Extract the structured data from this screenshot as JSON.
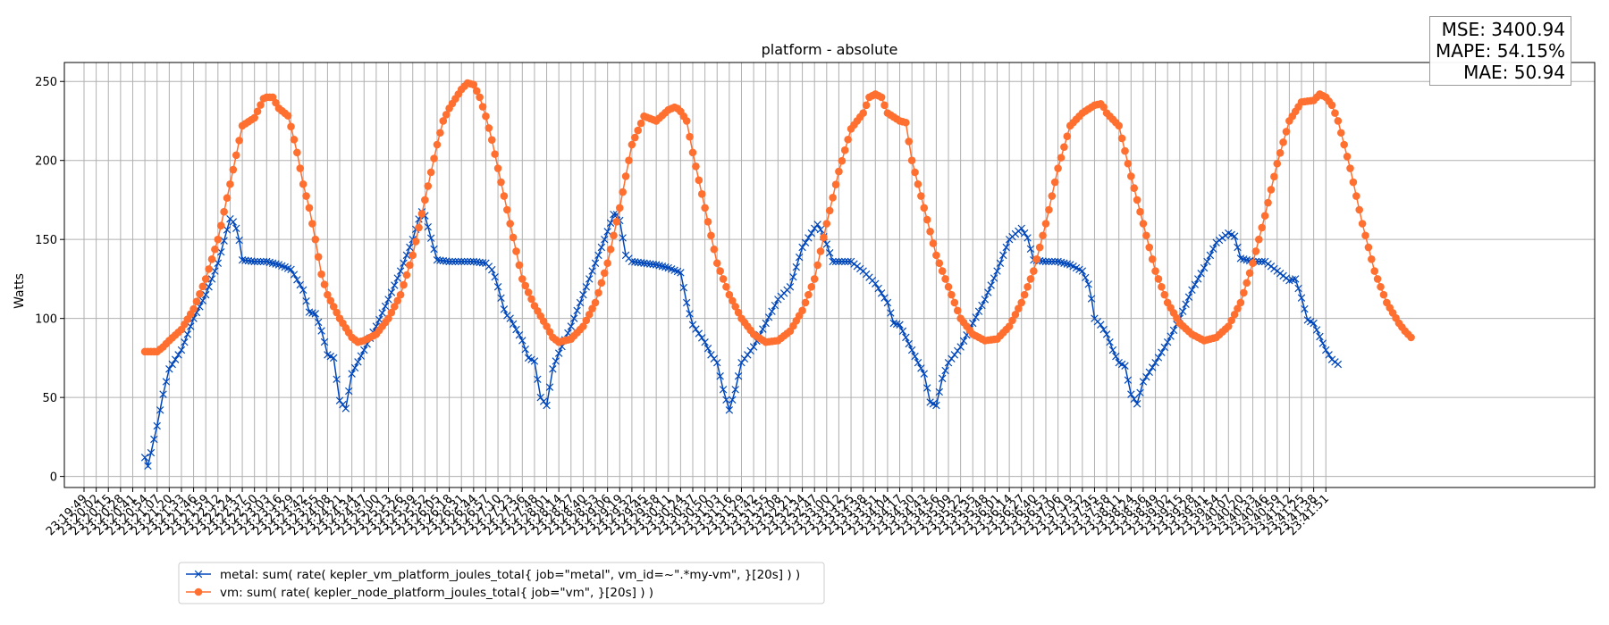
{
  "chart_data": {
    "type": "line",
    "title": "platform - absolute",
    "xlabel": "",
    "ylabel": "Watts",
    "ylim": [
      -7,
      262
    ],
    "yticks": [
      0,
      50,
      100,
      150,
      200,
      250
    ],
    "grid": true,
    "legend_position": "bottom-left",
    "x_ticks": [
      "23:19:49",
      "23:20:02",
      "23:20:15",
      "23:20:28",
      "23:20:41",
      "23:20:54",
      "23:21:07",
      "23:21:20",
      "23:21:33",
      "23:21:46",
      "23:21:59",
      "23:22:12",
      "23:22:24",
      "23:22:37",
      "23:22:50",
      "23:23:03",
      "23:23:16",
      "23:23:29",
      "23:23:42",
      "23:23:55",
      "23:24:08",
      "23:24:21",
      "23:24:34",
      "23:24:47",
      "23:25:00",
      "23:25:13",
      "23:25:26",
      "23:25:39",
      "23:25:52",
      "23:26:05",
      "23:26:18",
      "23:26:31",
      "23:26:44",
      "23:26:57",
      "23:27:10",
      "23:27:23",
      "23:27:36",
      "23:27:48",
      "23:28:01",
      "23:28:14",
      "23:28:27",
      "23:28:40",
      "23:28:53",
      "23:29:06",
      "23:29:19",
      "23:29:32",
      "23:29:45",
      "23:29:58",
      "23:30:11",
      "23:30:24",
      "23:30:37",
      "23:30:50",
      "23:31:03",
      "23:31:16",
      "23:31:29",
      "23:31:42",
      "23:31:55",
      "23:32:08",
      "23:32:21",
      "23:32:34",
      "23:32:47",
      "23:33:00",
      "23:33:12",
      "23:33:25",
      "23:33:38",
      "23:33:51",
      "23:34:04",
      "23:34:17",
      "23:34:30",
      "23:34:43",
      "23:34:56",
      "23:35:09",
      "23:35:22",
      "23:35:35",
      "23:35:48",
      "23:36:01",
      "23:36:14",
      "23:36:27",
      "23:36:40",
      "23:36:53",
      "23:37:06",
      "23:37:19",
      "23:37:32",
      "23:37:45",
      "23:37:58",
      "23:38:11",
      "23:38:24",
      "23:38:36",
      "23:38:49",
      "23:39:02",
      "23:39:15",
      "23:39:28",
      "23:39:41",
      "23:39:54",
      "23:40:07",
      "23:40:20",
      "23:40:33",
      "23:40:46",
      "23:40:59",
      "23:41:12",
      "23:41:25",
      "23:41:38",
      "23:41:51"
    ],
    "series": [
      {
        "name": "metal: sum( rate( kepler_vm_platform_joules_total{ job=\"metal\", vm_id=~\".*my-vm\", }[20s] ) )",
        "color": "#0047bb",
        "marker": "x",
        "anchors": [
          [
            5,
            12
          ],
          [
            5.2,
            5
          ],
          [
            5.5,
            15
          ],
          [
            6,
            32
          ],
          [
            6.5,
            52
          ],
          [
            7,
            68
          ],
          [
            8,
            80
          ],
          [
            9,
            100
          ],
          [
            10,
            115
          ],
          [
            11,
            135
          ],
          [
            11.6,
            152
          ],
          [
            12,
            163
          ],
          [
            12.4,
            160
          ],
          [
            12.8,
            148
          ],
          [
            13,
            137
          ],
          [
            14,
            136
          ],
          [
            15,
            136
          ],
          [
            16,
            134
          ],
          [
            17,
            131
          ],
          [
            18,
            118
          ],
          [
            18.5,
            104
          ],
          [
            19,
            103
          ],
          [
            19.6,
            90
          ],
          [
            20,
            77
          ],
          [
            20.5,
            75
          ],
          [
            21,
            48
          ],
          [
            21.5,
            43
          ],
          [
            22,
            65
          ],
          [
            23,
            80
          ],
          [
            24,
            95
          ],
          [
            25,
            112
          ],
          [
            26,
            130
          ],
          [
            27,
            150
          ],
          [
            27.7,
            168
          ],
          [
            28,
            165
          ],
          [
            28.6,
            148
          ],
          [
            29,
            137
          ],
          [
            30,
            136
          ],
          [
            31,
            136
          ],
          [
            32,
            136
          ],
          [
            33,
            135
          ],
          [
            33.6,
            130
          ],
          [
            34,
            120
          ],
          [
            34.6,
            103
          ],
          [
            35,
            100
          ],
          [
            36,
            86
          ],
          [
            36.5,
            75
          ],
          [
            37,
            73
          ],
          [
            37.5,
            50
          ],
          [
            38,
            45
          ],
          [
            38.5,
            68
          ],
          [
            39,
            78
          ],
          [
            40,
            95
          ],
          [
            41,
            115
          ],
          [
            42,
            135
          ],
          [
            43,
            155
          ],
          [
            43.6,
            168
          ],
          [
            44,
            162
          ],
          [
            44.5,
            140
          ],
          [
            45,
            136
          ],
          [
            46,
            135
          ],
          [
            47,
            134
          ],
          [
            48,
            132
          ],
          [
            49,
            129
          ],
          [
            49.5,
            110
          ],
          [
            50,
            96
          ],
          [
            51,
            85
          ],
          [
            51.5,
            77
          ],
          [
            52,
            72
          ],
          [
            52.5,
            55
          ],
          [
            53,
            42
          ],
          [
            53.5,
            55
          ],
          [
            54,
            72
          ],
          [
            55,
            82
          ],
          [
            56,
            97
          ],
          [
            57,
            112
          ],
          [
            58,
            120
          ],
          [
            59,
            145
          ],
          [
            60,
            157
          ],
          [
            60.3,
            160
          ],
          [
            61,
            147
          ],
          [
            61.5,
            136
          ],
          [
            62,
            136
          ],
          [
            63,
            136
          ],
          [
            64,
            130
          ],
          [
            65,
            122
          ],
          [
            66,
            110
          ],
          [
            66.5,
            97
          ],
          [
            67,
            96
          ],
          [
            68,
            80
          ],
          [
            68.5,
            72
          ],
          [
            69,
            65
          ],
          [
            69.5,
            47
          ],
          [
            70,
            45
          ],
          [
            70.5,
            62
          ],
          [
            71,
            72
          ],
          [
            72,
            82
          ],
          [
            73,
            97
          ],
          [
            74,
            112
          ],
          [
            75,
            130
          ],
          [
            76,
            150
          ],
          [
            77,
            157
          ],
          [
            77.5,
            151
          ],
          [
            78,
            137
          ],
          [
            79,
            136
          ],
          [
            80,
            136
          ],
          [
            81,
            134
          ],
          [
            82,
            130
          ],
          [
            82.6,
            120
          ],
          [
            83,
            100
          ],
          [
            83.5,
            96
          ],
          [
            84,
            90
          ],
          [
            84.5,
            80
          ],
          [
            85,
            72
          ],
          [
            85.5,
            70
          ],
          [
            86,
            52
          ],
          [
            86.5,
            46
          ],
          [
            87,
            60
          ],
          [
            88,
            72
          ],
          [
            89,
            85
          ],
          [
            90,
            100
          ],
          [
            91,
            118
          ],
          [
            92,
            132
          ],
          [
            93,
            148
          ],
          [
            94,
            154
          ],
          [
            94.5,
            152
          ],
          [
            95,
            138
          ],
          [
            96,
            136
          ],
          [
            97,
            136
          ],
          [
            98,
            130
          ],
          [
            99,
            124
          ],
          [
            99.5,
            125
          ],
          [
            100,
            113
          ],
          [
            100.5,
            99
          ],
          [
            101,
            97
          ],
          [
            102,
            80
          ],
          [
            102.5,
            74
          ],
          [
            103,
            71
          ]
        ]
      },
      {
        "name": "vm: sum( rate( kepler_node_platform_joules_total{ job=\"vm\", }[20s] ) )",
        "color": "#ff6f2f",
        "marker": "o",
        "anchors": [
          [
            5,
            79
          ],
          [
            6,
            79
          ],
          [
            6.5,
            82
          ],
          [
            7,
            86
          ],
          [
            8,
            93
          ],
          [
            9,
            106
          ],
          [
            10,
            125
          ],
          [
            11,
            150
          ],
          [
            12,
            185
          ],
          [
            12.6,
            207
          ],
          [
            13,
            222
          ],
          [
            14,
            227
          ],
          [
            14.8,
            240
          ],
          [
            15.5,
            240
          ],
          [
            16,
            233
          ],
          [
            16.8,
            228
          ],
          [
            17.5,
            205
          ],
          [
            18,
            185
          ],
          [
            18.5,
            170
          ],
          [
            19,
            150
          ],
          [
            19.5,
            128
          ],
          [
            20,
            115
          ],
          [
            21,
            100
          ],
          [
            22,
            88
          ],
          [
            22.5,
            85
          ],
          [
            23,
            86
          ],
          [
            24,
            90
          ],
          [
            25,
            100
          ],
          [
            26,
            115
          ],
          [
            27,
            140
          ],
          [
            28,
            175
          ],
          [
            29,
            210
          ],
          [
            29.5,
            225
          ],
          [
            30,
            233
          ],
          [
            31,
            245
          ],
          [
            31.5,
            249
          ],
          [
            32,
            248
          ],
          [
            32.5,
            240
          ],
          [
            33,
            228
          ],
          [
            33.5,
            213
          ],
          [
            34,
            195
          ],
          [
            35,
            160
          ],
          [
            36,
            125
          ],
          [
            37,
            108
          ],
          [
            38,
            95
          ],
          [
            38.5,
            88
          ],
          [
            39,
            85
          ],
          [
            40,
            87
          ],
          [
            41,
            95
          ],
          [
            42,
            110
          ],
          [
            43,
            135
          ],
          [
            44,
            170
          ],
          [
            45,
            210
          ],
          [
            46,
            228
          ],
          [
            47,
            225
          ],
          [
            48,
            232
          ],
          [
            48.6,
            234
          ],
          [
            49,
            231
          ],
          [
            49.5,
            225
          ],
          [
            50,
            205
          ],
          [
            51,
            170
          ],
          [
            52,
            135
          ],
          [
            53,
            115
          ],
          [
            54,
            100
          ],
          [
            55,
            90
          ],
          [
            56,
            85
          ],
          [
            57,
            86
          ],
          [
            58,
            92
          ],
          [
            59,
            105
          ],
          [
            60,
            125
          ],
          [
            61,
            160
          ],
          [
            62,
            193
          ],
          [
            63,
            220
          ],
          [
            64,
            230
          ],
          [
            64.5,
            240
          ],
          [
            65,
            242
          ],
          [
            65.5,
            240
          ],
          [
            66,
            230
          ],
          [
            67,
            225
          ],
          [
            67.5,
            224
          ],
          [
            68,
            200
          ],
          [
            69,
            170
          ],
          [
            70,
            140
          ],
          [
            71,
            120
          ],
          [
            72,
            100
          ],
          [
            73,
            90
          ],
          [
            74,
            86
          ],
          [
            75,
            87
          ],
          [
            76,
            95
          ],
          [
            77,
            110
          ],
          [
            78,
            130
          ],
          [
            79,
            160
          ],
          [
            80,
            195
          ],
          [
            81,
            222
          ],
          [
            82,
            230
          ],
          [
            83,
            235
          ],
          [
            83.6,
            236
          ],
          [
            84,
            230
          ],
          [
            85,
            222
          ],
          [
            86,
            190
          ],
          [
            87,
            160
          ],
          [
            88,
            130
          ],
          [
            89,
            110
          ],
          [
            90,
            97
          ],
          [
            91,
            90
          ],
          [
            92,
            86
          ],
          [
            93,
            88
          ],
          [
            94,
            95
          ],
          [
            95,
            110
          ],
          [
            96,
            135
          ],
          [
            97,
            165
          ],
          [
            98,
            198
          ],
          [
            99,
            225
          ],
          [
            100,
            237
          ],
          [
            101,
            238
          ],
          [
            101.5,
            242
          ],
          [
            102,
            240
          ],
          [
            102.5,
            235
          ],
          [
            103,
            225
          ],
          [
            104,
            195
          ],
          [
            105,
            160
          ],
          [
            106,
            130
          ],
          [
            107,
            110
          ],
          [
            108,
            97
          ],
          [
            108.5,
            92
          ],
          [
            109,
            88
          ]
        ]
      }
    ]
  },
  "stats": {
    "mse": "MSE: 3400.94",
    "mape": "MAPE: 54.15%",
    "mae": "MAE: 50.94"
  }
}
